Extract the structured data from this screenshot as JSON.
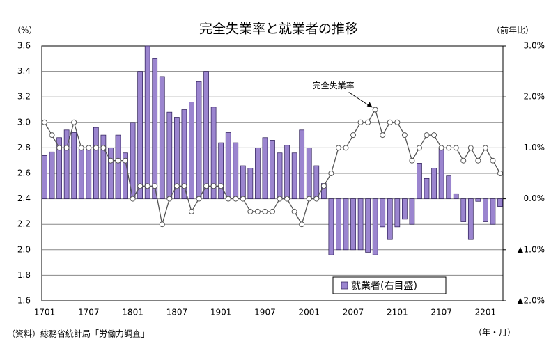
{
  "chart_data": {
    "type": "bar-line",
    "title": "完全失業率と就業者の推移",
    "y_label": "（%）",
    "y2_label": "（前年比）",
    "x_label": "（年・月）",
    "source": "（資料）総務省統計局「労働力調査」",
    "categories": [
      "1701",
      null,
      null,
      null,
      null,
      null,
      "1707",
      null,
      null,
      null,
      null,
      null,
      "1801",
      null,
      null,
      null,
      null,
      null,
      "1807",
      null,
      null,
      null,
      null,
      null,
      "1901",
      null,
      null,
      null,
      null,
      null,
      "1907",
      null,
      null,
      null,
      null,
      null,
      "2001",
      null,
      null,
      null,
      null,
      null,
      "2007",
      null,
      null,
      null,
      null,
      null,
      "2101",
      null,
      null,
      null,
      null,
      null,
      "2107",
      null,
      null,
      null,
      null,
      null,
      "2201",
      null,
      null
    ],
    "series": [
      {
        "name": "就業者(右目盛)",
        "type": "bar",
        "axis": "y2",
        "color": "#9b85cf",
        "values": [
          0.85,
          0.92,
          1.2,
          1.35,
          1.3,
          1.0,
          1.0,
          1.4,
          1.25,
          1.0,
          1.25,
          0.9,
          1.5,
          2.5,
          3.0,
          2.75,
          2.4,
          1.7,
          1.6,
          1.75,
          1.9,
          2.3,
          2.5,
          1.8,
          1.1,
          1.3,
          1.1,
          0.65,
          0.6,
          1.0,
          1.2,
          1.15,
          0.9,
          1.05,
          0.9,
          1.35,
          1.0,
          0.65,
          0.3,
          -1.1,
          -1.0,
          -1.0,
          -1.0,
          -1.0,
          -1.05,
          -1.1,
          -0.55,
          -0.8,
          -0.55,
          -0.4,
          -0.5,
          0.7,
          0.4,
          0.6,
          1.0,
          0.45,
          0.1,
          -0.45,
          -0.8,
          -0.05,
          -0.45,
          -0.5,
          -0.15
        ]
      },
      {
        "name": "完全失業率",
        "type": "line",
        "axis": "y",
        "color": "#555555",
        "values": [
          3.0,
          2.9,
          2.8,
          2.8,
          3.0,
          2.8,
          2.8,
          2.8,
          2.8,
          2.7,
          2.7,
          2.7,
          2.4,
          2.5,
          2.5,
          2.5,
          2.2,
          2.4,
          2.5,
          2.5,
          2.3,
          2.4,
          2.5,
          2.5,
          2.5,
          2.4,
          2.4,
          2.4,
          2.3,
          2.3,
          2.3,
          2.3,
          2.4,
          2.4,
          2.3,
          2.2,
          2.4,
          2.4,
          2.5,
          2.6,
          2.8,
          2.8,
          2.9,
          3.0,
          3.0,
          3.1,
          2.9,
          3.0,
          3.0,
          2.9,
          2.7,
          2.8,
          2.9,
          2.9,
          2.8,
          2.8,
          2.8,
          2.7,
          2.8,
          2.7,
          2.8,
          2.7,
          2.6
        ]
      }
    ],
    "ylim": [
      1.6,
      3.6
    ],
    "yticks": [
      {
        "value": 1.6,
        "label": "1.6"
      },
      {
        "value": 1.8,
        "label": "1.8"
      },
      {
        "value": 2.0,
        "label": "2.0"
      },
      {
        "value": 2.2,
        "label": "2.2"
      },
      {
        "value": 2.4,
        "label": "2.4"
      },
      {
        "value": 2.6,
        "label": "2.6"
      },
      {
        "value": 2.8,
        "label": "2.8"
      },
      {
        "value": 3.0,
        "label": "3.0"
      },
      {
        "value": 3.2,
        "label": "3.2"
      },
      {
        "value": 3.4,
        "label": "3.4"
      },
      {
        "value": 3.6,
        "label": "3.6"
      }
    ],
    "y2lim": [
      -2.0,
      3.0
    ],
    "y2ticks": [
      {
        "value": -2,
        "label": "▲2.0%"
      },
      {
        "value": -1,
        "label": "▲1.0%"
      },
      {
        "value": 0,
        "label": "0.0%"
      },
      {
        "value": 1,
        "label": "1.0%"
      },
      {
        "value": 2,
        "label": "2.0%"
      },
      {
        "value": 3,
        "label": "3.0%"
      }
    ],
    "grid": true,
    "legend": "lower right"
  }
}
